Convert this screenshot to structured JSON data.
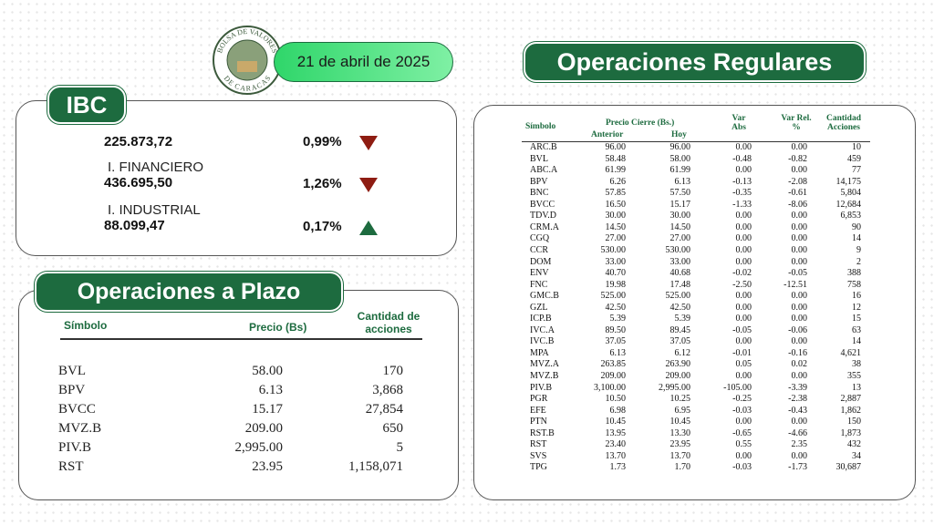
{
  "header": {
    "logo_top": "BOLSA DE VALORES",
    "logo_bottom": "DE CARACAS",
    "date": "21 de abril de 2025"
  },
  "ibc": {
    "title": "IBC",
    "rows": [
      {
        "label": null,
        "value": "225.873,72",
        "change": "0,99%",
        "direction": "down"
      },
      {
        "label": "I. FINANCIERO",
        "value": "436.695,50",
        "change": "1,26%",
        "direction": "down"
      },
      {
        "label": "I. INDUSTRIAL",
        "value": "88.099,47",
        "change": "0,17%",
        "direction": "up"
      }
    ]
  },
  "plazo": {
    "title": "Operaciones a Plazo",
    "headers": [
      "Símbolo",
      "Precio (Bs)",
      "Cantidad de acciones"
    ],
    "rows": [
      [
        "BVL",
        "58.00",
        "170"
      ],
      [
        "BPV",
        "6.13",
        "3,868"
      ],
      [
        "BVCC",
        "15.17",
        "27,854"
      ],
      [
        "MVZ.B",
        "209.00",
        "650"
      ],
      [
        "PIV.B",
        "2,995.00",
        "5"
      ],
      [
        "RST",
        "23.95",
        "1,158,071"
      ]
    ]
  },
  "regulares": {
    "title": "Operaciones Regulares",
    "headers": {
      "symbol": "Símbolo",
      "price": "Precio Cierre (Bs.)",
      "previous": "Anterior",
      "today": "Hoy",
      "var_abs": "Var Abs",
      "var_rel": "Var Rel. %",
      "quantity": "Cantidad Acciones"
    },
    "rows": [
      [
        "ARC.B",
        "96.00",
        "96.00",
        "0.00",
        "0.00",
        "10"
      ],
      [
        "BVL",
        "58.48",
        "58.00",
        "-0.48",
        "-0.82",
        "459"
      ],
      [
        "ABC.A",
        "61.99",
        "61.99",
        "0.00",
        "0.00",
        "77"
      ],
      [
        "BPV",
        "6.26",
        "6.13",
        "-0.13",
        "-2.08",
        "14,175"
      ],
      [
        "BNC",
        "57.85",
        "57.50",
        "-0.35",
        "-0.61",
        "5,804"
      ],
      [
        "BVCC",
        "16.50",
        "15.17",
        "-1.33",
        "-8.06",
        "12,684"
      ],
      [
        "TDV.D",
        "30.00",
        "30.00",
        "0.00",
        "0.00",
        "6,853"
      ],
      [
        "CRM.A",
        "14.50",
        "14.50",
        "0.00",
        "0.00",
        "90"
      ],
      [
        "CGQ",
        "27.00",
        "27.00",
        "0.00",
        "0.00",
        "14"
      ],
      [
        "CCR",
        "530.00",
        "530.00",
        "0.00",
        "0.00",
        "9"
      ],
      [
        "DOM",
        "33.00",
        "33.00",
        "0.00",
        "0.00",
        "2"
      ],
      [
        "ENV",
        "40.70",
        "40.68",
        "-0.02",
        "-0.05",
        "388"
      ],
      [
        "FNC",
        "19.98",
        "17.48",
        "-2.50",
        "-12.51",
        "758"
      ],
      [
        "GMC.B",
        "525.00",
        "525.00",
        "0.00",
        "0.00",
        "16"
      ],
      [
        "GZL",
        "42.50",
        "42.50",
        "0.00",
        "0.00",
        "12"
      ],
      [
        "ICP.B",
        "5.39",
        "5.39",
        "0.00",
        "0.00",
        "15"
      ],
      [
        "IVC.A",
        "89.50",
        "89.45",
        "-0.05",
        "-0.06",
        "63"
      ],
      [
        "IVC.B",
        "37.05",
        "37.05",
        "0.00",
        "0.00",
        "14"
      ],
      [
        "MPA",
        "6.13",
        "6.12",
        "-0.01",
        "-0.16",
        "4,621"
      ],
      [
        "MVZ.A",
        "263.85",
        "263.90",
        "0.05",
        "0.02",
        "38"
      ],
      [
        "MVZ.B",
        "209.00",
        "209.00",
        "0.00",
        "0.00",
        "355"
      ],
      [
        "PIV.B",
        "3,100.00",
        "2,995.00",
        "-105.00",
        "-3.39",
        "13"
      ],
      [
        "PGR",
        "10.50",
        "10.25",
        "-0.25",
        "-2.38",
        "2,887"
      ],
      [
        "EFE",
        "6.98",
        "6.95",
        "-0.03",
        "-0.43",
        "1,862"
      ],
      [
        "PTN",
        "10.45",
        "10.45",
        "0.00",
        "0.00",
        "150"
      ],
      [
        "RST.B",
        "13.95",
        "13.30",
        "-0.65",
        "-4.66",
        "1,873"
      ],
      [
        "RST",
        "23.40",
        "23.95",
        "0.55",
        "2.35",
        "432"
      ],
      [
        "SVS",
        "13.70",
        "13.70",
        "0.00",
        "0.00",
        "34"
      ],
      [
        "TPG",
        "1.73",
        "1.70",
        "-0.03",
        "-1.73",
        "30,687"
      ]
    ]
  }
}
